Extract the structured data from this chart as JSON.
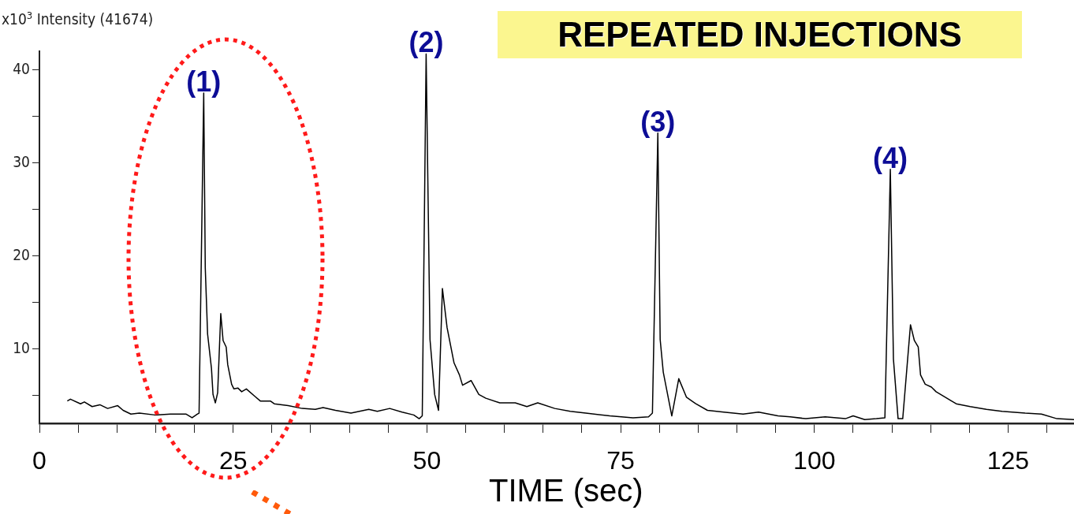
{
  "chart_data": {
    "type": "line",
    "title": "REPEATED INJECTIONS",
    "ylabel": "x10$^{3}$ Intensity (41674)",
    "xlabel": "TIME (sec)",
    "xlim": [
      0,
      133.5
    ],
    "ylim": [
      2,
      42
    ],
    "xticks": [
      0,
      {
        "value": 5,
        "label": null
      },
      {
        "value": 10,
        "label": null
      },
      {
        "value": 15,
        "label": null
      },
      {
        "value": 20,
        "label": null
      },
      25,
      {
        "value": 30,
        "label": null
      },
      {
        "value": 35,
        "label": null
      },
      {
        "value": 40,
        "label": null
      },
      {
        "value": 45,
        "label": null
      },
      50,
      {
        "value": 55,
        "label": null
      },
      {
        "value": 60,
        "label": null
      },
      {
        "value": 65,
        "label": null
      },
      {
        "value": 70,
        "label": null
      },
      75,
      {
        "value": 80,
        "label": null
      },
      {
        "value": 85,
        "label": null
      },
      {
        "value": 90,
        "label": null
      },
      {
        "value": 95,
        "label": null
      },
      100,
      {
        "value": 105,
        "label": null
      },
      {
        "value": 110,
        "label": null
      },
      {
        "value": 115,
        "label": null
      },
      {
        "value": 120,
        "label": null
      },
      125,
      {
        "value": 130,
        "label": null
      }
    ],
    "yticks": [
      {
        "value": 5,
        "label": null
      },
      10,
      {
        "value": 15,
        "label": null
      },
      20,
      {
        "value": 25,
        "label": null
      },
      30,
      {
        "value": 35,
        "label": null
      },
      40
    ],
    "grid": false,
    "legend": false,
    "marker": "none",
    "line_style": "solid",
    "series": [
      {
        "color": "#000000",
        "x": [
          3.6,
          4.0,
          5.3,
          5.8,
          6.8,
          7.8,
          8.8,
          10.1,
          10.8,
          11.8,
          12.9,
          14.9,
          16.9,
          18.9,
          19.7,
          20.4,
          20.6,
          21.2,
          21.4,
          21.7,
          22.2,
          22.4,
          22.7,
          23.0,
          23.4,
          23.7,
          24.1,
          24.3,
          24.8,
          25.1,
          25.6,
          26.1,
          26.7,
          27.8,
          28.5,
          29.8,
          30.3,
          32.1,
          33.9,
          35.6,
          36.6,
          38.2,
          40.2,
          42.5,
          43.6,
          45.2,
          46.8,
          48.3,
          49.0,
          49.4,
          49.9,
          50.4,
          51.0,
          51.5,
          52.0,
          52.6,
          53.5,
          54.2,
          54.6,
          55.7,
          56.7,
          57.6,
          59.4,
          61.4,
          62.9,
          64.3,
          66.5,
          68.5,
          70.5,
          73.6,
          75.1,
          76.6,
          78.6,
          79.1,
          79.8,
          80.1,
          80.5,
          81.6,
          82.5,
          83.5,
          84.7,
          86.2,
          88.3,
          90.8,
          92.8,
          95.3,
          96.9,
          98.9,
          101.4,
          104.0,
          105.0,
          106.5,
          108.0,
          109.1,
          109.8,
          110.2,
          110.8,
          111.4,
          112.4,
          112.9,
          113.4,
          113.7,
          114.3,
          115.1,
          115.7,
          117.1,
          118.3,
          120.1,
          122.2,
          124.2,
          127.2,
          129.3,
          131.3,
          133.5
        ],
        "values": [
          4.4,
          4.6,
          4.1,
          4.3,
          3.8,
          4.0,
          3.6,
          3.9,
          3.4,
          3.0,
          3.1,
          2.9,
          3.0,
          3.0,
          2.6,
          3.0,
          3.1,
          37.5,
          18.7,
          11.6,
          7.9,
          5.1,
          4.2,
          5.3,
          13.8,
          10.9,
          10.2,
          8.3,
          6.2,
          5.7,
          5.8,
          5.4,
          5.7,
          4.9,
          4.4,
          4.4,
          4.1,
          3.9,
          3.6,
          3.5,
          3.7,
          3.4,
          3.1,
          3.5,
          3.3,
          3.6,
          3.2,
          2.9,
          2.5,
          2.8,
          41.7,
          11.0,
          5.1,
          3.4,
          16.5,
          12.3,
          8.5,
          7.2,
          6.1,
          6.6,
          5.1,
          4.7,
          4.2,
          4.2,
          3.8,
          4.2,
          3.6,
          3.3,
          3.1,
          2.8,
          2.7,
          2.6,
          2.7,
          3.1,
          33.2,
          11.0,
          7.5,
          2.8,
          6.8,
          4.8,
          4.1,
          3.4,
          3.2,
          3.0,
          3.2,
          2.8,
          2.7,
          2.5,
          2.7,
          2.5,
          2.8,
          2.4,
          2.5,
          2.6,
          29.3,
          8.9,
          2.5,
          2.5,
          12.6,
          10.9,
          10.2,
          7.2,
          6.2,
          5.9,
          5.4,
          4.7,
          4.1,
          3.8,
          3.5,
          3.3,
          3.1,
          3.0,
          2.5,
          2.4
        ]
      }
    ],
    "annotations": [
      {
        "text": "(1)",
        "x": 21.2,
        "y": 37.5
      },
      {
        "text": "(2)",
        "x": 49.9,
        "y": 41.7
      },
      {
        "text": "(3)",
        "x": 79.8,
        "y": 33.2
      },
      {
        "text": "(4)",
        "x": 109.8,
        "y": 29.3
      }
    ]
  }
}
